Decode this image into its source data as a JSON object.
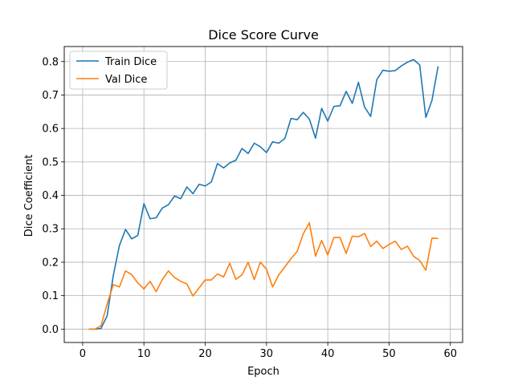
{
  "chart_data": {
    "type": "line",
    "title": "Dice Score Curve",
    "xlabel": "Epoch",
    "ylabel": "Dice Coefficient",
    "xlim": [
      -3,
      62
    ],
    "ylim": [
      -0.04,
      0.845
    ],
    "xticks": [
      0,
      10,
      20,
      30,
      40,
      50,
      60
    ],
    "yticks": [
      0.0,
      0.1,
      0.2,
      0.3,
      0.4,
      0.5,
      0.6,
      0.7,
      0.8
    ],
    "ytick_labels": [
      "0.0",
      "0.1",
      "0.2",
      "0.3",
      "0.4",
      "0.5",
      "0.6",
      "0.7",
      "0.8"
    ],
    "grid": true,
    "legend_position": "upper-left",
    "x": [
      1,
      2,
      3,
      4,
      5,
      6,
      7,
      8,
      9,
      10,
      11,
      12,
      13,
      14,
      15,
      16,
      17,
      18,
      19,
      20,
      21,
      22,
      23,
      24,
      25,
      26,
      27,
      28,
      29,
      30,
      31,
      32,
      33,
      34,
      35,
      36,
      37,
      38,
      39,
      40,
      41,
      42,
      43,
      44,
      45,
      46,
      47,
      48,
      49,
      50,
      51,
      52,
      53,
      54,
      55,
      56,
      57,
      58
    ],
    "series": [
      {
        "name": "Train Dice",
        "color": "#1f77b4",
        "values": [
          0.0,
          0.0,
          0.002,
          0.04,
          0.16,
          0.25,
          0.298,
          0.27,
          0.28,
          0.375,
          0.33,
          0.333,
          0.362,
          0.372,
          0.398,
          0.39,
          0.425,
          0.405,
          0.433,
          0.428,
          0.44,
          0.495,
          0.482,
          0.497,
          0.505,
          0.54,
          0.525,
          0.556,
          0.545,
          0.528,
          0.56,
          0.556,
          0.57,
          0.63,
          0.626,
          0.648,
          0.628,
          0.571,
          0.66,
          0.622,
          0.666,
          0.668,
          0.711,
          0.675,
          0.738,
          0.664,
          0.636,
          0.746,
          0.774,
          0.771,
          0.773,
          0.787,
          0.798,
          0.806,
          0.79,
          0.633,
          0.684,
          0.786
        ]
      },
      {
        "name": "Val Dice",
        "color": "#ff7f0e",
        "values": [
          0.0,
          0.0,
          0.01,
          0.075,
          0.133,
          0.126,
          0.174,
          0.163,
          0.138,
          0.12,
          0.143,
          0.112,
          0.148,
          0.174,
          0.154,
          0.143,
          0.135,
          0.099,
          0.123,
          0.147,
          0.147,
          0.165,
          0.156,
          0.197,
          0.149,
          0.162,
          0.2,
          0.148,
          0.2,
          0.179,
          0.126,
          0.162,
          0.186,
          0.211,
          0.232,
          0.285,
          0.318,
          0.218,
          0.265,
          0.222,
          0.274,
          0.274,
          0.226,
          0.278,
          0.276,
          0.286,
          0.247,
          0.263,
          0.241,
          0.253,
          0.263,
          0.238,
          0.248,
          0.218,
          0.205,
          0.176,
          0.272,
          0.271
        ]
      }
    ]
  }
}
